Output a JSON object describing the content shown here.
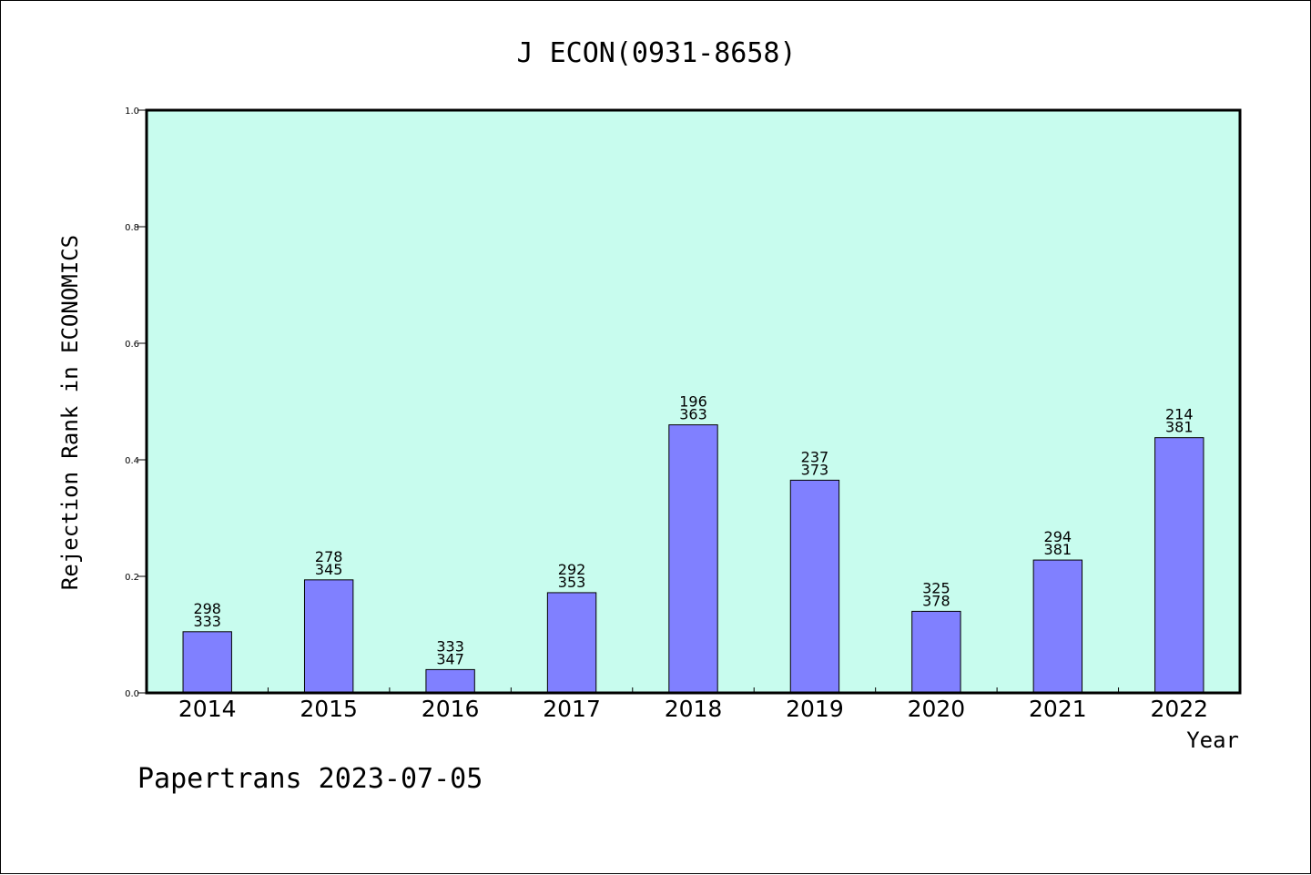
{
  "footer": "Papertrans 2023-07-05",
  "chart_data": {
    "type": "bar",
    "title": "J ECON(0931-8658)",
    "xlabel": "Year",
    "ylabel": "Rejection Rank in ECONOMICS",
    "ylim": [
      0,
      1.0
    ],
    "yticks": [
      "0.0",
      "0.2",
      "0.4",
      "0.6",
      "0.8",
      "1.0"
    ],
    "categories": [
      "2014",
      "2015",
      "2016",
      "2017",
      "2018",
      "2019",
      "2020",
      "2021",
      "2022"
    ],
    "values": [
      0.105,
      0.194,
      0.04,
      0.172,
      0.46,
      0.365,
      0.14,
      0.228,
      0.438
    ],
    "labels_top": [
      "298",
      "278",
      "333",
      "292",
      "196",
      "237",
      "325",
      "294",
      "214"
    ],
    "labels_bottom": [
      "333",
      "345",
      "347",
      "353",
      "363",
      "373",
      "378",
      "381",
      "381"
    ],
    "colors": {
      "plot_background": "#c8fcee",
      "bar": "#8080ff"
    },
    "grid": false,
    "legend": "none"
  }
}
